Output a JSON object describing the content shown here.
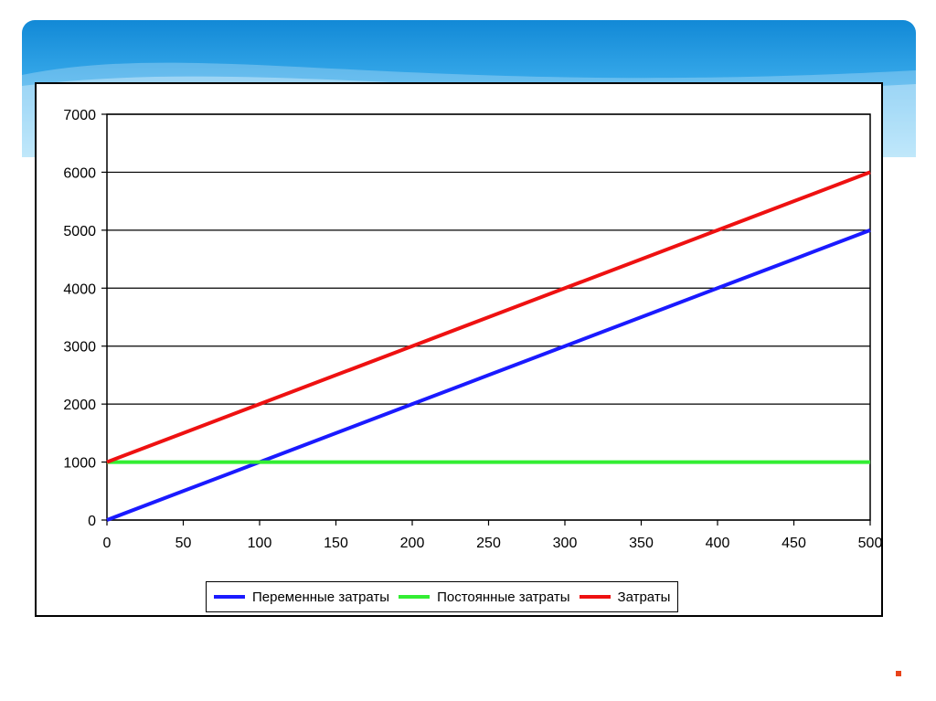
{
  "colors": {
    "banner_top": "#1289d6",
    "banner_bottom": "#7fd0f6",
    "grid": "#000000",
    "marker": "#e8431a"
  },
  "chart_data": {
    "type": "line",
    "title": "",
    "xlabel": "",
    "ylabel": "",
    "x": [
      0,
      50,
      100,
      150,
      200,
      250,
      300,
      350,
      400,
      450,
      500
    ],
    "xlim": [
      0,
      500
    ],
    "ylim": [
      0,
      7000
    ],
    "x_ticks": [
      "0",
      "50",
      "100",
      "150",
      "200",
      "250",
      "300",
      "350",
      "400",
      "450",
      "500"
    ],
    "y_ticks": [
      "0",
      "1000",
      "2000",
      "3000",
      "4000",
      "5000",
      "6000",
      "7000"
    ],
    "grid": "horizontal",
    "legend_position": "bottom",
    "series": [
      {
        "name": "Переменные затраты",
        "color": "#1a1aff",
        "values": [
          0,
          500,
          1000,
          1500,
          2000,
          2500,
          3000,
          3500,
          4000,
          4500,
          5000
        ]
      },
      {
        "name": "Постоянные затраты",
        "color": "#33ee33",
        "values": [
          1000,
          1000,
          1000,
          1000,
          1000,
          1000,
          1000,
          1000,
          1000,
          1000,
          1000
        ]
      },
      {
        "name": "Затраты",
        "color": "#ee1111",
        "values": [
          1000,
          1500,
          2000,
          2500,
          3000,
          3500,
          4000,
          4500,
          5000,
          5500,
          6000
        ]
      }
    ]
  }
}
